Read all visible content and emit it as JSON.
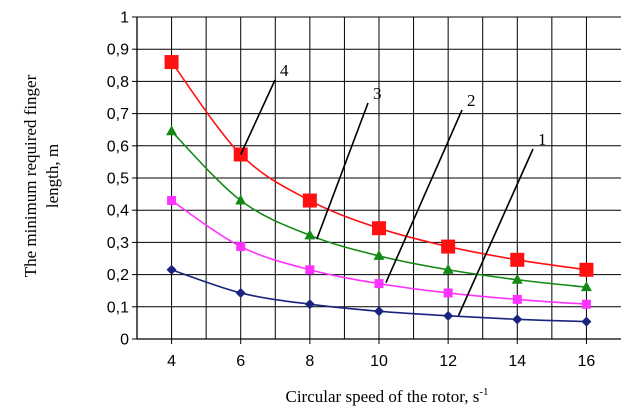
{
  "chart_data": {
    "type": "line",
    "xlabel": "Circular speed of the rotor, s",
    "xlabel_superscript": "-1",
    "ylabel_line1": "The minimum required finger",
    "ylabel_line2": "length, m",
    "x": [
      4,
      6,
      8,
      10,
      12,
      14,
      16
    ],
    "xlim": [
      3,
      17
    ],
    "ylim": [
      0,
      1
    ],
    "xticks": [
      "4",
      "6",
      "8",
      "10",
      "12",
      "14",
      "16"
    ],
    "yticks": [
      "0",
      "0,1",
      "0,2",
      "0,3",
      "0,4",
      "0,5",
      "0,6",
      "0,7",
      "0,8",
      "0,9",
      "1"
    ],
    "grid": true,
    "series": [
      {
        "name": "1",
        "color": "#1a237e",
        "marker": "diamond",
        "values": [
          0.215,
          0.143,
          0.108,
          0.086,
          0.072,
          0.061,
          0.054
        ]
      },
      {
        "name": "2",
        "color": "#ff33ff",
        "marker": "square",
        "values": [
          0.43,
          0.287,
          0.215,
          0.172,
          0.143,
          0.123,
          0.108
        ]
      },
      {
        "name": "3",
        "color": "#138a13",
        "marker": "triangle",
        "values": [
          0.645,
          0.43,
          0.322,
          0.258,
          0.215,
          0.184,
          0.161
        ]
      },
      {
        "name": "4",
        "color": "#ff1111",
        "marker": "square",
        "values": [
          0.86,
          0.573,
          0.43,
          0.344,
          0.287,
          0.246,
          0.215
        ]
      }
    ]
  }
}
